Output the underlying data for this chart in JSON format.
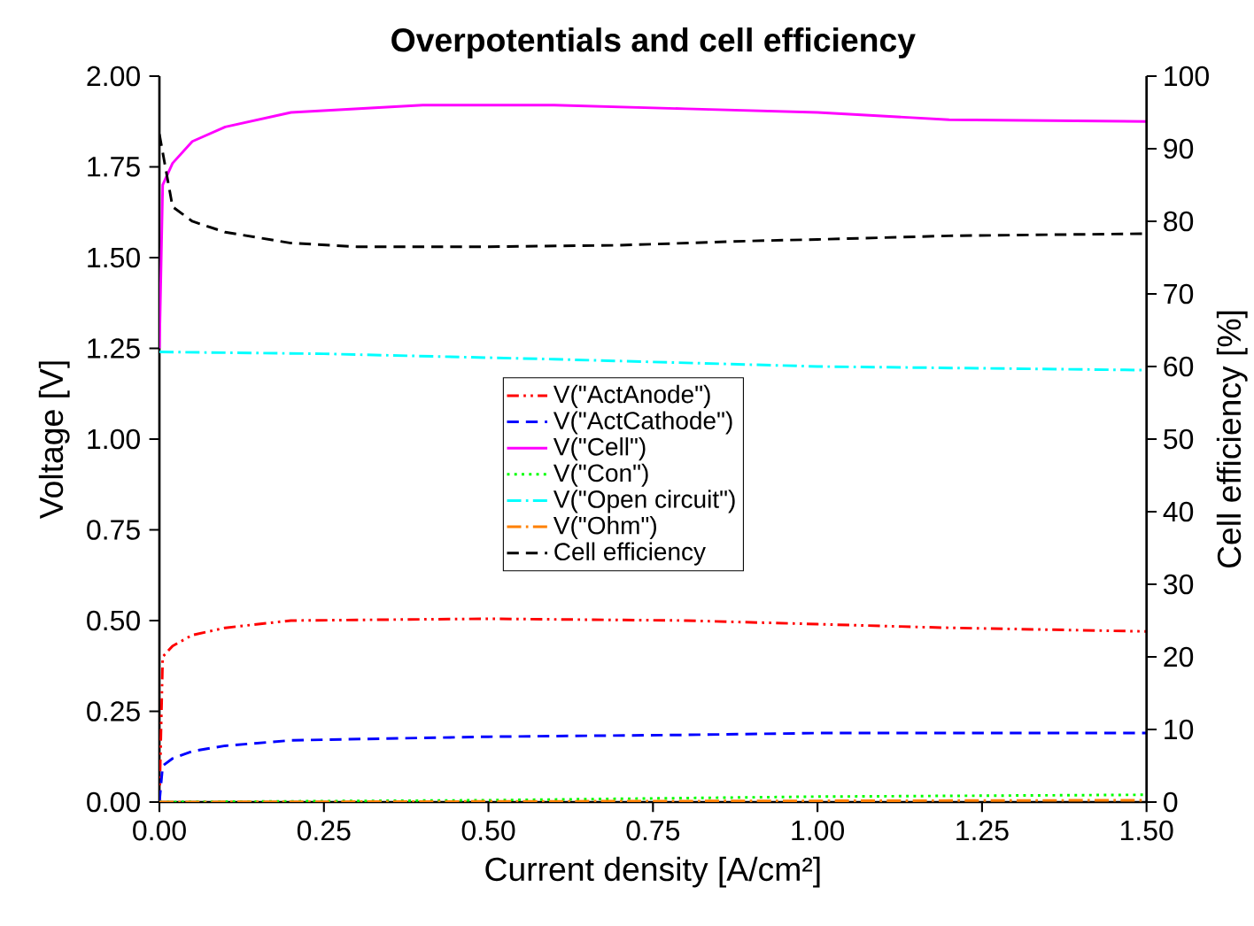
{
  "chart_data": {
    "type": "line",
    "title": "Overpotentials and cell efficiency",
    "xlabel": "Current density [A/cm²]",
    "ylabel": "Voltage [V]",
    "y2label": "Cell efficiency [%]",
    "xlim": [
      0,
      1.5
    ],
    "xticks": [
      {
        "value": 0,
        "label": "0.00"
      },
      {
        "value": 0.25,
        "label": "0.25"
      },
      {
        "value": 0.5,
        "label": "0.50"
      },
      {
        "value": 0.75,
        "label": "0.75"
      },
      {
        "value": 1.0,
        "label": "1.00"
      },
      {
        "value": 1.25,
        "label": "1.25"
      },
      {
        "value": 1.5,
        "label": "1.50"
      }
    ],
    "ylim": [
      0,
      2
    ],
    "yticks": [
      {
        "value": 0,
        "label": "0.00"
      },
      {
        "value": 0.25,
        "label": "0.25"
      },
      {
        "value": 0.5,
        "label": "0.50"
      },
      {
        "value": 0.75,
        "label": "0.75"
      },
      {
        "value": 1.0,
        "label": "1.00"
      },
      {
        "value": 1.25,
        "label": "1.25"
      },
      {
        "value": 1.5,
        "label": "1.50"
      },
      {
        "value": 1.75,
        "label": "1.75"
      },
      {
        "value": 2.0,
        "label": "2.00"
      }
    ],
    "y2lim": [
      0,
      100
    ],
    "y2ticks": [
      0,
      10,
      20,
      30,
      40,
      50,
      60,
      70,
      80,
      90,
      100
    ],
    "legend": "center",
    "grid": false,
    "series": [
      {
        "name": "V(\"ActAnode\")",
        "color": "#ff0000",
        "line_style": "dashdotdot",
        "x": [
          0,
          0.005,
          0.02,
          0.05,
          0.1,
          0.2,
          0.5,
          0.8,
          1.0,
          1.2,
          1.5
        ],
        "values": [
          0,
          0.4,
          0.43,
          0.46,
          0.48,
          0.5,
          0.505,
          0.5,
          0.49,
          0.48,
          0.47
        ]
      },
      {
        "name": "V(\"ActCathode\")",
        "color": "#0000ff",
        "line_style": "dashed",
        "x": [
          0,
          0.005,
          0.02,
          0.05,
          0.1,
          0.2,
          0.5,
          0.8,
          1.0,
          1.5
        ],
        "values": [
          0,
          0.1,
          0.12,
          0.14,
          0.155,
          0.17,
          0.18,
          0.185,
          0.19,
          0.19
        ]
      },
      {
        "name": "V(\"Cell\")",
        "color": "#ff00ff",
        "line_style": "solid",
        "x": [
          0,
          0.005,
          0.02,
          0.05,
          0.1,
          0.2,
          0.4,
          0.6,
          0.8,
          1.0,
          1.2,
          1.5
        ],
        "values": [
          1.25,
          1.7,
          1.76,
          1.82,
          1.86,
          1.9,
          1.92,
          1.92,
          1.91,
          1.9,
          1.88,
          1.875
        ]
      },
      {
        "name": "V(\"Con\")",
        "color": "#00ff00",
        "line_style": "dotted",
        "x": [
          0,
          0.5,
          1.0,
          1.5
        ],
        "values": [
          0,
          0.005,
          0.015,
          0.02
        ]
      },
      {
        "name": "V(\"Open circuit\")",
        "color": "#00ffff",
        "line_style": "dashdot",
        "x": [
          0,
          0.25,
          0.6,
          1.0,
          1.5
        ],
        "values": [
          1.24,
          1.235,
          1.22,
          1.2,
          1.19
        ]
      },
      {
        "name": "V(\"Ohm\")",
        "color": "#ff8000",
        "line_style": "dashdot",
        "x": [
          0,
          1.5
        ],
        "values": [
          0,
          0.005
        ]
      },
      {
        "name": "Cell efficiency",
        "color": "#000000",
        "line_style": "dashed",
        "axis": "y2",
        "x": [
          0,
          0.02,
          0.05,
          0.1,
          0.2,
          0.3,
          0.5,
          0.7,
          0.9,
          1.0,
          1.2,
          1.5
        ],
        "values": [
          92,
          82,
          80,
          78.5,
          77,
          76.5,
          76.5,
          76.7,
          77.3,
          77.5,
          78,
          78.3
        ]
      }
    ]
  }
}
